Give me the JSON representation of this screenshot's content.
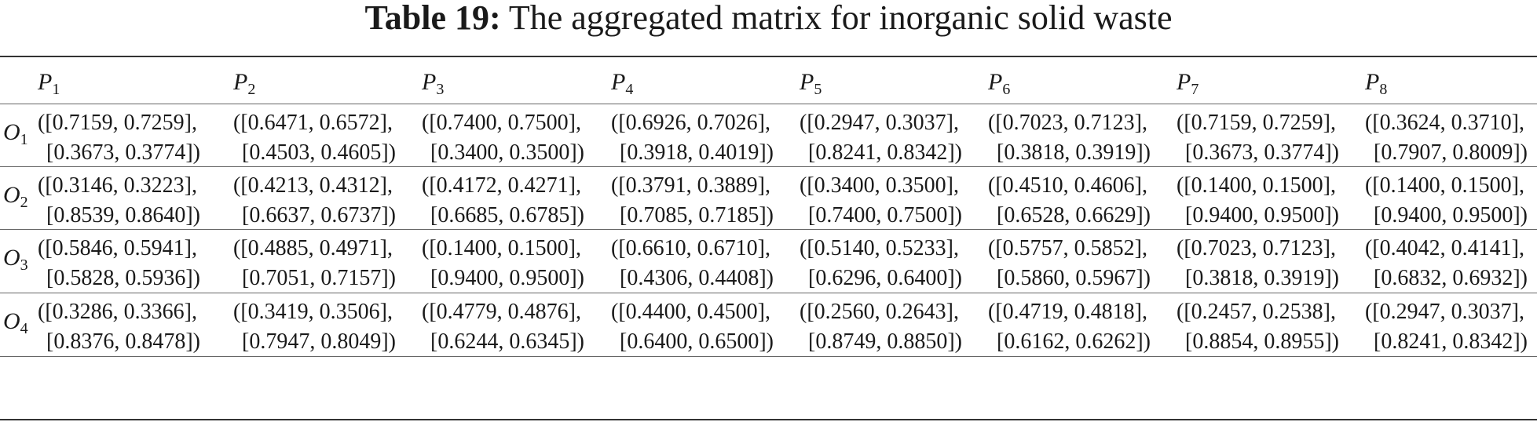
{
  "caption": {
    "label": "Table 19:",
    "text": "The aggregated matrix for inorganic solid waste"
  },
  "columns": [
    {
      "sym": "P",
      "sub": "1"
    },
    {
      "sym": "P",
      "sub": "2"
    },
    {
      "sym": "P",
      "sub": "3"
    },
    {
      "sym": "P",
      "sub": "4"
    },
    {
      "sym": "P",
      "sub": "5"
    },
    {
      "sym": "P",
      "sub": "6"
    },
    {
      "sym": "P",
      "sub": "7"
    },
    {
      "sym": "P",
      "sub": "8"
    }
  ],
  "rows": [
    {
      "sym": "O",
      "sub": "1",
      "cells": [
        [
          "([0.7159, 0.7259],",
          "[0.3673, 0.3774])"
        ],
        [
          "([0.6471, 0.6572],",
          "[0.4503, 0.4605])"
        ],
        [
          "([0.7400, 0.7500],",
          "[0.3400, 0.3500])"
        ],
        [
          "([0.6926, 0.7026],",
          "[0.3918, 0.4019])"
        ],
        [
          "([0.2947, 0.3037],",
          "[0.8241, 0.8342])"
        ],
        [
          "([0.7023, 0.7123],",
          "[0.3818, 0.3919])"
        ],
        [
          "([0.7159, 0.7259],",
          "[0.3673, 0.3774])"
        ],
        [
          "([0.3624, 0.3710],",
          "[0.7907, 0.8009])"
        ]
      ]
    },
    {
      "sym": "O",
      "sub": "2",
      "cells": [
        [
          "([0.3146, 0.3223],",
          "[0.8539, 0.8640])"
        ],
        [
          "([0.4213, 0.4312],",
          "[0.6637, 0.6737])"
        ],
        [
          "([0.4172, 0.4271],",
          "[0.6685, 0.6785])"
        ],
        [
          "([0.3791, 0.3889],",
          "[0.7085, 0.7185])"
        ],
        [
          "([0.3400, 0.3500],",
          "[0.7400, 0.7500])"
        ],
        [
          "([0.4510, 0.4606],",
          "[0.6528, 0.6629])"
        ],
        [
          "([0.1400, 0.1500],",
          "[0.9400, 0.9500])"
        ],
        [
          "([0.1400, 0.1500],",
          "[0.9400, 0.9500])"
        ]
      ]
    },
    {
      "sym": "O",
      "sub": "3",
      "cells": [
        [
          "([0.5846, 0.5941],",
          "[0.5828, 0.5936])"
        ],
        [
          "([0.4885, 0.4971],",
          "[0.7051, 0.7157])"
        ],
        [
          "([0.1400, 0.1500],",
          "[0.9400, 0.9500])"
        ],
        [
          "([0.6610, 0.6710],",
          "[0.4306, 0.4408])"
        ],
        [
          "([0.5140, 0.5233],",
          "[0.6296, 0.6400])"
        ],
        [
          "([0.5757, 0.5852],",
          "[0.5860, 0.5967])"
        ],
        [
          "([0.7023, 0.7123],",
          "[0.3818, 0.3919])"
        ],
        [
          "([0.4042, 0.4141],",
          "[0.6832, 0.6932])"
        ]
      ]
    },
    {
      "sym": "O",
      "sub": "4",
      "cells": [
        [
          "([0.3286, 0.3366],",
          "[0.8376, 0.8478])"
        ],
        [
          "([0.3419, 0.3506],",
          "[0.7947, 0.8049])"
        ],
        [
          "([0.4779, 0.4876],",
          "[0.6244, 0.6345])"
        ],
        [
          "([0.4400, 0.4500],",
          "[0.6400, 0.6500])"
        ],
        [
          "([0.2560, 0.2643],",
          "[0.8749, 0.8850])"
        ],
        [
          "([0.4719, 0.4818],",
          "[0.6162, 0.6262])"
        ],
        [
          "([0.2457, 0.2538],",
          "[0.8854, 0.8955])"
        ],
        [
          "([0.2947, 0.3037],",
          "[0.8241, 0.8342])"
        ]
      ]
    }
  ]
}
